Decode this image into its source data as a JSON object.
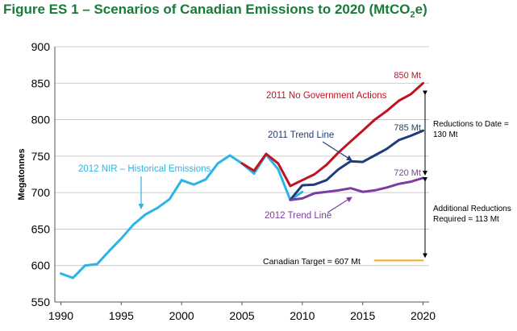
{
  "title": {
    "prefix": "Figure ES 1 – Scenarios of Canadian Emissions to 2020 (MtCO",
    "subscript": "2",
    "suffix": "e)"
  },
  "colors": {
    "historical": "#29b6e6",
    "no_action": "#c0131f",
    "trend_2011": "#1f3c7a",
    "trend_2012": "#7a3ea0",
    "target": "#f5a623",
    "title": "#1a7a3a"
  },
  "chart_data": {
    "type": "line",
    "ylabel": "Megatonnes",
    "xlabel": "",
    "xlim": [
      1989.5,
      2020.5
    ],
    "ylim": [
      550,
      900
    ],
    "x_ticks": [
      1990,
      1995,
      2000,
      2005,
      2010,
      2015,
      2020
    ],
    "y_ticks": [
      550,
      600,
      650,
      700,
      750,
      800,
      850,
      900
    ],
    "grid": true,
    "series": [
      {
        "name": "2012 NIR – Historical Emissions",
        "color": "#29b6e6",
        "x": [
          1990,
          1991,
          1992,
          1993,
          1994,
          1995,
          1996,
          1997,
          1998,
          1999,
          2000,
          2001,
          2002,
          2003,
          2004,
          2005,
          2006,
          2007,
          2008,
          2009,
          2010
        ],
        "y": [
          589,
          583,
          600,
          602,
          620,
          637,
          656,
          670,
          679,
          691,
          717,
          711,
          718,
          740,
          751,
          740,
          726,
          752,
          732,
          690,
          701
        ]
      },
      {
        "name": "2011 No Government Actions",
        "color": "#c0131f",
        "x": [
          2005,
          2006,
          2007,
          2008,
          2009,
          2010,
          2011,
          2012,
          2013,
          2014,
          2015,
          2016,
          2017,
          2018,
          2019,
          2020
        ],
        "y": [
          740,
          730,
          753,
          740,
          709,
          717,
          725,
          738,
          755,
          770,
          785,
          800,
          812,
          826,
          835,
          850
        ]
      },
      {
        "name": "2011 Trend Line",
        "color": "#1f3c7a",
        "x": [
          2009,
          2010,
          2011,
          2012,
          2013,
          2014,
          2015,
          2016,
          2017,
          2018,
          2019,
          2020
        ],
        "y": [
          690,
          710,
          711,
          717,
          732,
          743,
          742,
          751,
          760,
          772,
          778,
          785
        ]
      },
      {
        "name": "2012 Trend Line",
        "color": "#7a3ea0",
        "x": [
          2009,
          2010,
          2011,
          2012,
          2013,
          2014,
          2015,
          2016,
          2017,
          2018,
          2019,
          2020
        ],
        "y": [
          690,
          692,
          699,
          701,
          703,
          706,
          701,
          703,
          707,
          712,
          715,
          720
        ]
      },
      {
        "name": "Canadian Target = 607 Mt",
        "color": "#f5a623",
        "x": [
          2016,
          2020
        ],
        "y": [
          607,
          607
        ]
      }
    ],
    "annotations": [
      {
        "text": "850 Mt",
        "x": 2020,
        "y": 850,
        "color": "#c0131f"
      },
      {
        "text": "785 Mt",
        "x": 2020,
        "y": 785,
        "color": "#1f3c7a"
      },
      {
        "text": "720 Mt",
        "x": 2020,
        "y": 720,
        "color": "#7a3ea0"
      },
      {
        "text": "2011 No Government Actions",
        "color": "#c0131f"
      },
      {
        "text": "2011 Trend Line",
        "color": "#1f3c7a"
      },
      {
        "text": "2012 NIR – Historical Emissions",
        "color": "#29b6e6"
      },
      {
        "text": "2012 Trend Line",
        "color": "#7a3ea0"
      },
      {
        "text": "Canadian Target = 607 Mt",
        "color": "#000000"
      },
      {
        "text_lines": [
          "Reductions to Date =",
          "130 Mt"
        ],
        "from": 850,
        "to": 720
      },
      {
        "text_lines": [
          "Additional Reductions",
          "Required = 113 Mt"
        ],
        "from": 720,
        "to": 607
      }
    ]
  }
}
